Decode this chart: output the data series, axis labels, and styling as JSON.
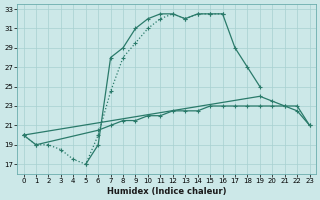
{
  "xlabel": "Humidex (Indice chaleur)",
  "bg_color": "#cce8e8",
  "line_color": "#2a7a6a",
  "xlim": [
    -0.5,
    23.5
  ],
  "ylim": [
    16.0,
    33.5
  ],
  "yticks": [
    17,
    19,
    21,
    23,
    25,
    27,
    29,
    31,
    33
  ],
  "xticks": [
    0,
    1,
    2,
    3,
    4,
    5,
    6,
    7,
    8,
    9,
    10,
    11,
    12,
    13,
    14,
    15,
    16,
    17,
    18,
    19,
    20,
    21,
    22,
    23
  ],
  "line_dotted_x": [
    0,
    1,
    2,
    3,
    4,
    5,
    6,
    7,
    8,
    9,
    10,
    11,
    12,
    13,
    14,
    15,
    16
  ],
  "line_dotted_y": [
    20.0,
    19.0,
    19.0,
    18.5,
    17.5,
    17.0,
    20.0,
    24.5,
    28.0,
    29.5,
    31.0,
    32.0,
    32.5,
    32.0,
    32.5,
    32.5,
    32.5
  ],
  "line_main_x": [
    5,
    6,
    7,
    8,
    9,
    10,
    11,
    12,
    13,
    14,
    15,
    16,
    17,
    18,
    19
  ],
  "line_main_y": [
    17.0,
    19.0,
    28.0,
    29.0,
    31.0,
    32.0,
    32.5,
    32.5,
    32.0,
    32.5,
    32.5,
    32.5,
    29.0,
    27.0,
    25.0
  ],
  "line_upper_flat_x": [
    0,
    19,
    20,
    21,
    22,
    23
  ],
  "line_upper_flat_y": [
    20.0,
    24.0,
    23.5,
    23.0,
    22.5,
    21.0
  ],
  "line_lower_flat_x": [
    0,
    1,
    6,
    7,
    8,
    9,
    10,
    11,
    12,
    13,
    14,
    15,
    16,
    17,
    18,
    19,
    20,
    21,
    22,
    23
  ],
  "line_lower_flat_y": [
    20.0,
    19.0,
    20.5,
    21.0,
    21.5,
    21.5,
    22.0,
    22.0,
    22.5,
    22.5,
    22.5,
    23.0,
    23.0,
    23.0,
    23.0,
    23.0,
    23.0,
    23.0,
    23.0,
    21.0
  ]
}
